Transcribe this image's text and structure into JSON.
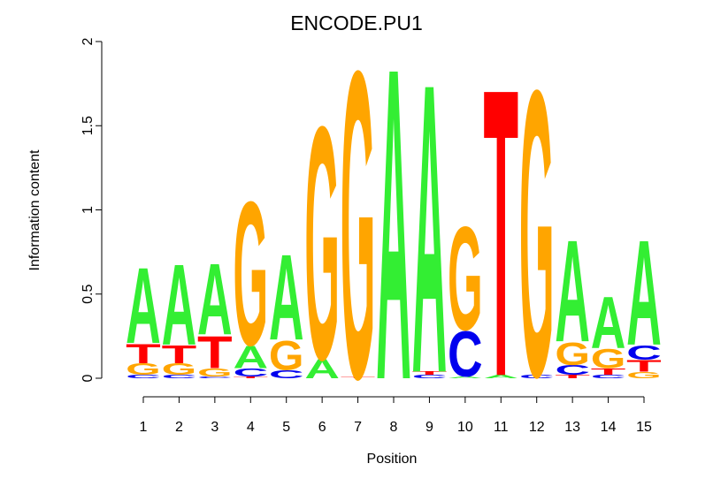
{
  "chart_data": {
    "type": "logo",
    "title": "ENCODE.PU1",
    "x_label": "Position",
    "y_label": "Information content",
    "x": [
      1,
      2,
      3,
      4,
      5,
      6,
      7,
      8,
      9,
      10,
      11,
      12,
      13,
      14,
      15
    ],
    "ylim": [
      0,
      2
    ],
    "yticks": [
      0,
      0.5,
      1,
      1.5,
      2
    ],
    "series": [
      {
        "name": "A",
        "color": "#33ee33",
        "values": [
          0.47,
          0.5,
          0.44,
          0.14,
          0.53,
          0.12,
          0,
          1.93,
          1.79,
          0.01,
          0.02,
          0,
          0.63,
          0.32,
          0.65
        ]
      },
      {
        "name": "C",
        "color": "#0000ee",
        "values": [
          0.02,
          0.02,
          0.01,
          0.05,
          0.05,
          0,
          0,
          0,
          0.02,
          0.28,
          0,
          0.02,
          0.06,
          0.02,
          0.09
        ]
      },
      {
        "name": "G",
        "color": "#ffa500",
        "values": [
          0.07,
          0.07,
          0.05,
          0.89,
          0.18,
          1.44,
          1.9,
          0,
          0,
          0.64,
          0,
          1.77,
          0.14,
          0.12,
          0.04
        ]
      },
      {
        "name": "T",
        "color": "#ff0000",
        "values": [
          0.12,
          0.11,
          0.2,
          0.01,
          0,
          0,
          0.01,
          0,
          0.02,
          0,
          1.78,
          0,
          0.02,
          0.04,
          0.07
        ]
      }
    ]
  }
}
